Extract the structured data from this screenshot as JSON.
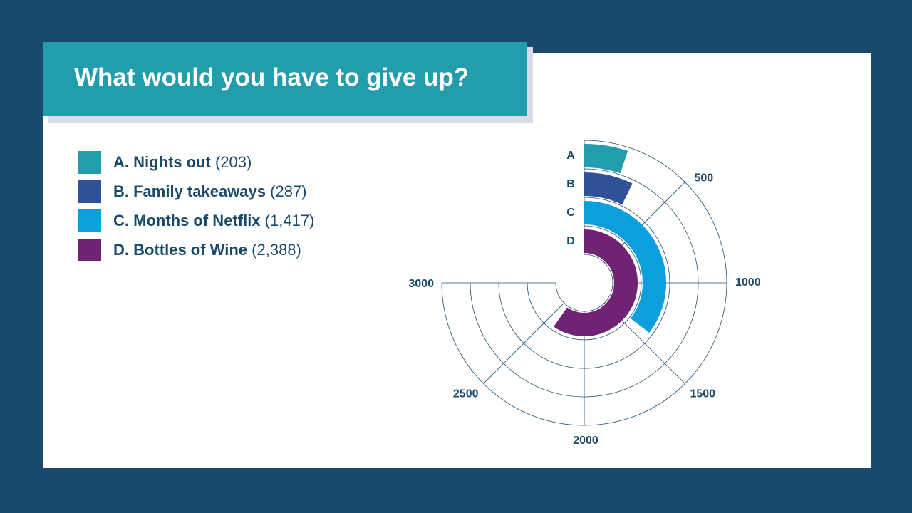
{
  "title": "What would you have to give up?",
  "colors": {
    "background": "#1a4a6b",
    "title_bar": "#229dab",
    "text": "#1a4a6b",
    "grid": "#1f4f75"
  },
  "legend": [
    {
      "label": "A. Nights out",
      "value": "(203)",
      "color": "#229dab"
    },
    {
      "label": "B. Family takeaways",
      "value": "(287)",
      "color": "#2e5198"
    },
    {
      "label": "C. Months of Netflix",
      "value": "(1,417)",
      "color": "#0c9edd"
    },
    {
      "label": "D. Bottles of Wine",
      "value": "(2,388)",
      "color": "#702374"
    }
  ],
  "chart_data": {
    "type": "radial-bar",
    "title": "",
    "categories": [
      "A",
      "B",
      "C",
      "D"
    ],
    "values": [
      203,
      287,
      1417,
      2388
    ],
    "colors": [
      "#229dab",
      "#2e5198",
      "#0c9edd",
      "#702374"
    ],
    "axis_max": 3000,
    "ticks": [
      500,
      1000,
      1500,
      2000,
      2500,
      3000
    ],
    "tick_labels": [
      "500",
      "1000",
      "1500",
      "2000",
      "2500",
      "3000"
    ],
    "grid": true
  }
}
